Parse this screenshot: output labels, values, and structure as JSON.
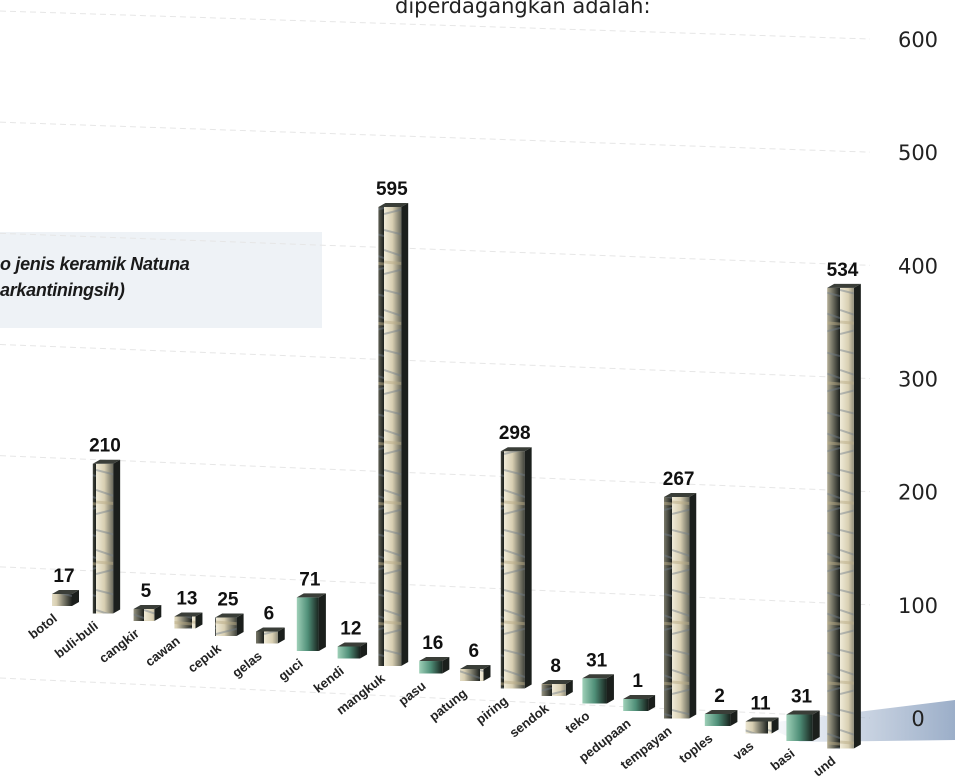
{
  "header": {
    "text": "diperdagangkan adalah:"
  },
  "caption": {
    "line1": "o jenis keramik Natuna",
    "line2": "arkantiningsih)"
  },
  "colors": {
    "bar_light": "#e9e2cc",
    "bar_mid": "#8f8a72",
    "bar_dark": "#1b1f1c",
    "bar_green": "#4f8f78",
    "axis_text": "#222222",
    "value_text": "#111111"
  },
  "chart_data": {
    "type": "bar",
    "title": "",
    "xlabel": "",
    "ylabel": "",
    "ylim": [
      0,
      600
    ],
    "yticks": [
      0,
      100,
      200,
      300,
      400,
      500,
      600
    ],
    "categories": [
      "botol",
      "buli-buli",
      "cangkir",
      "cawan",
      "cepuk",
      "gelas",
      "guci",
      "kendi",
      "mangkuk",
      "pasu",
      "patung",
      "piring",
      "sendok",
      "teko",
      "pedupaan",
      "tempayan",
      "toples",
      "vas",
      "basi",
      "und"
    ],
    "values": [
      17,
      210,
      5,
      13,
      25,
      6,
      71,
      12,
      595,
      16,
      6,
      298,
      8,
      31,
      1,
      267,
      2,
      11,
      31,
      534
    ],
    "value_labels": [
      "17",
      "210",
      "5",
      "13",
      "25",
      "6",
      "71",
      "12",
      "595",
      "16",
      "6",
      "298",
      "8",
      "31",
      "1",
      "267",
      "2",
      "11",
      "31",
      "534"
    ],
    "grid": true,
    "legend": "none"
  }
}
